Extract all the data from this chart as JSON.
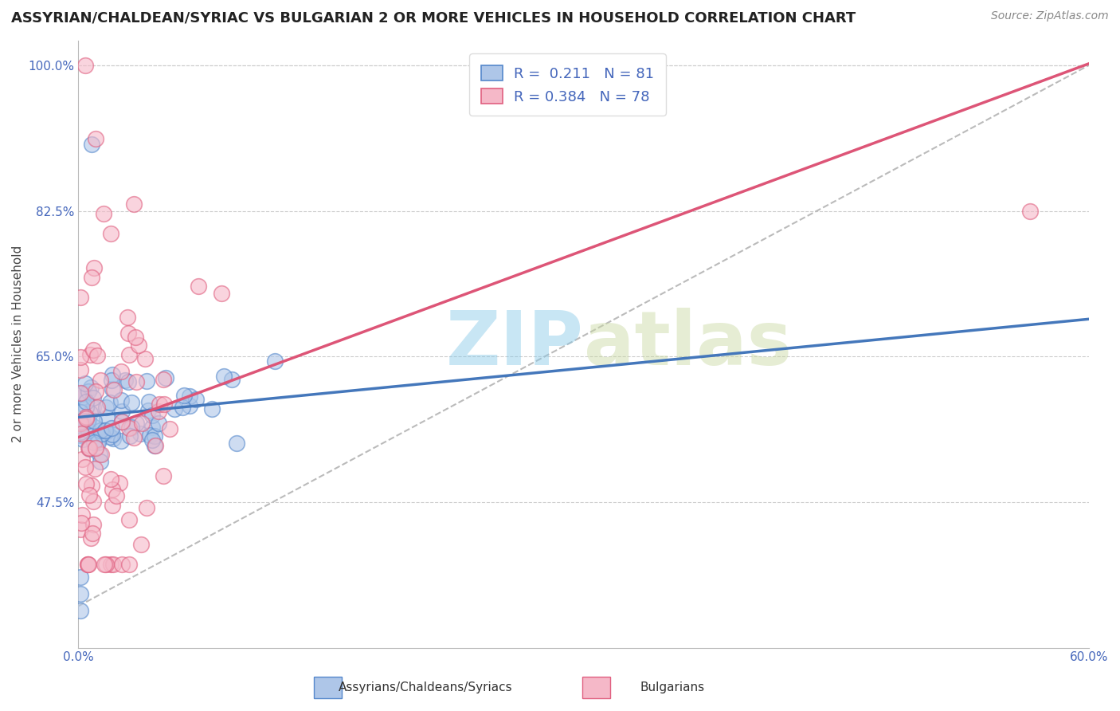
{
  "title": "ASSYRIAN/CHALDEAN/SYRIAC VS BULGARIAN 2 OR MORE VEHICLES IN HOUSEHOLD CORRELATION CHART",
  "source": "Source: ZipAtlas.com",
  "ylabel": "2 or more Vehicles in Household",
  "x_label_assyrian": "Assyrians/Chaldeans/Syriacs",
  "x_label_bulgarian": "Bulgarians",
  "xlim": [
    0.0,
    0.6
  ],
  "ylim": [
    0.3,
    1.03
  ],
  "yticks": [
    0.475,
    0.65,
    0.825,
    1.0
  ],
  "yticklabels": [
    "47.5%",
    "65.0%",
    "82.5%",
    "100.0%"
  ],
  "grid_color": "#cccccc",
  "background_color": "#ffffff",
  "assyrian_fill": "#aec6e8",
  "bulgarian_fill": "#f5b8c8",
  "assyrian_edge": "#5588cc",
  "bulgarian_edge": "#e06080",
  "assyrian_line_color": "#4477bb",
  "bulgarian_line_color": "#dd5577",
  "diagonal_color": "#bbbbbb",
  "R_assyrian": 0.211,
  "N_assyrian": 81,
  "R_bulgarian": 0.384,
  "N_bulgarian": 78,
  "watermark_zip": "ZIP",
  "watermark_atlas": "atlas",
  "title_fontsize": 13,
  "axis_label_fontsize": 11,
  "tick_fontsize": 11,
  "legend_fontsize": 13,
  "source_fontsize": 10,
  "legend_text_color": "#4466bb",
  "tick_color": "#4466bb",
  "ylabel_color": "#444444",
  "assyrian_intercept": 0.575,
  "assyrian_slope": 0.22,
  "bulgarian_intercept": 0.555,
  "bulgarian_slope": 0.74
}
